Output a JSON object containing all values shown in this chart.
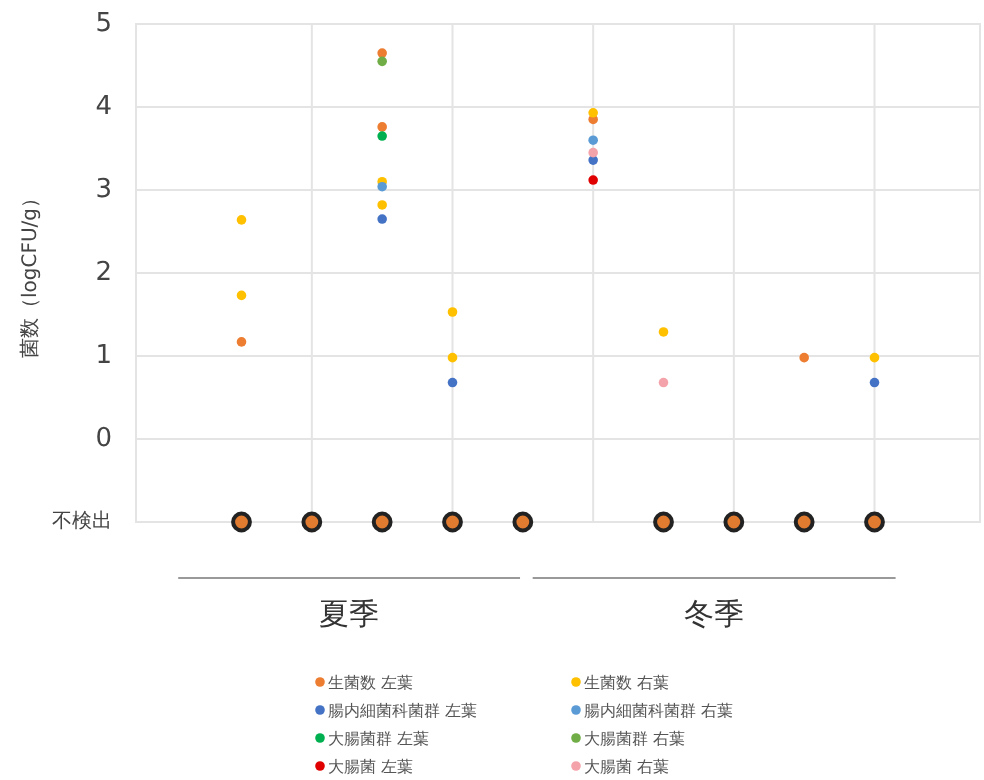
{
  "chart_data": {
    "type": "scatter",
    "ylabel": "菌数（logCFU/g）",
    "ylim": [
      -1,
      5
    ],
    "categories": [
      null,
      null,
      null,
      null,
      null,
      null,
      null,
      null,
      null,
      null,
      null,
      null
    ],
    "yticks": [
      {
        "value": -1,
        "label": "不検出"
      },
      0,
      1,
      2,
      3,
      4,
      5
    ],
    "grid": true,
    "legend": "bottom",
    "marker": "circle",
    "annotations": [
      "夏季",
      "冬季"
    ],
    "series": [
      {
        "color": "#e07b30",
        "values": [
          null,
          -1,
          -1,
          -1,
          -1,
          -1,
          null,
          -1,
          -1,
          -1,
          -1,
          null
        ]
      },
      {
        "name": "生菌数 左葉",
        "color": "#ed7d31",
        "values": [
          null,
          1.17,
          null,
          4.65,
          null,
          null,
          3.85,
          null,
          null,
          0.98,
          null,
          null
        ]
      },
      {
        "color": "#ed7d31",
        "values": [
          null,
          null,
          null,
          3.76,
          null,
          null,
          null,
          null,
          null,
          null,
          null,
          null
        ]
      },
      {
        "name": "生菌数 右葉",
        "color": "#ffc000",
        "values": [
          null,
          2.64,
          null,
          3.1,
          1.53,
          null,
          3.93,
          1.29,
          null,
          null,
          0.98,
          null
        ]
      },
      {
        "color": "#ffc000",
        "values": [
          null,
          1.73,
          null,
          2.82,
          0.98,
          null,
          null,
          null,
          null,
          null,
          null,
          null
        ]
      },
      {
        "name": "腸内細菌科菌群 左葉",
        "color": "#4472c4",
        "values": [
          null,
          null,
          null,
          2.65,
          0.68,
          null,
          3.36,
          null,
          null,
          null,
          0.68,
          null
        ]
      },
      {
        "name": "腸内細菌科菌群 右葉",
        "color": "#5b9bd5",
        "values": [
          null,
          null,
          null,
          3.04,
          null,
          null,
          3.6,
          null,
          null,
          null,
          null,
          null
        ]
      },
      {
        "name": "大腸菌群 左葉",
        "color": "#00b050",
        "values": [
          null,
          null,
          null,
          3.65,
          null,
          null,
          null,
          null,
          null,
          null,
          null,
          null
        ]
      },
      {
        "name": "大腸菌群 右葉",
        "color": "#70ad47",
        "values": [
          null,
          null,
          null,
          4.55,
          null,
          null,
          null,
          null,
          null,
          null,
          null,
          null
        ]
      },
      {
        "name": "大腸菌 左葉",
        "color": "#e00000",
        "values": [
          null,
          null,
          null,
          null,
          null,
          null,
          3.12,
          null,
          null,
          null,
          null,
          null
        ]
      },
      {
        "name": "大腸菌 右葉",
        "color": "#f4a3aa",
        "values": [
          null,
          null,
          null,
          null,
          null,
          null,
          3.45,
          0.68,
          null,
          null,
          null,
          null
        ]
      }
    ]
  }
}
